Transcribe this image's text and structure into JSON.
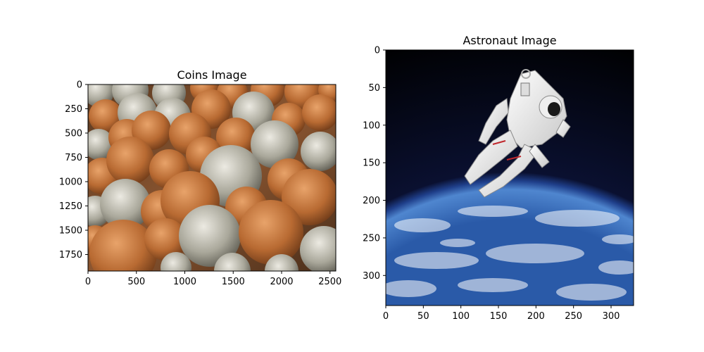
{
  "chart_data": [
    {
      "type": "image",
      "title": "Coins Image",
      "image_subject": "coins",
      "xlim": [
        0,
        2560
      ],
      "ylim": [
        1920,
        0
      ],
      "xticks": [
        0,
        500,
        1000,
        1500,
        2000,
        2500
      ],
      "yticks": [
        0,
        250,
        500,
        750,
        1000,
        1250,
        1500,
        1750
      ],
      "xticklabels": [
        "0",
        "500",
        "1000",
        "1500",
        "2000",
        "2500"
      ],
      "yticklabels": [
        "0",
        "250",
        "500",
        "750",
        "1000",
        "1250",
        "1500",
        "1750"
      ],
      "grid": false
    },
    {
      "type": "image",
      "title": "Astronaut Image",
      "image_subject": "astronaut",
      "xlim": [
        0,
        330
      ],
      "ylim": [
        340,
        0
      ],
      "xticks": [
        0,
        50,
        100,
        150,
        200,
        250,
        300
      ],
      "yticks": [
        0,
        50,
        100,
        150,
        200,
        250,
        300
      ],
      "xticklabels": [
        "0",
        "50",
        "100",
        "150",
        "200",
        "250",
        "300"
      ],
      "yticklabels": [
        "0",
        "50",
        "100",
        "150",
        "200",
        "250",
        "300"
      ],
      "grid": false
    }
  ]
}
